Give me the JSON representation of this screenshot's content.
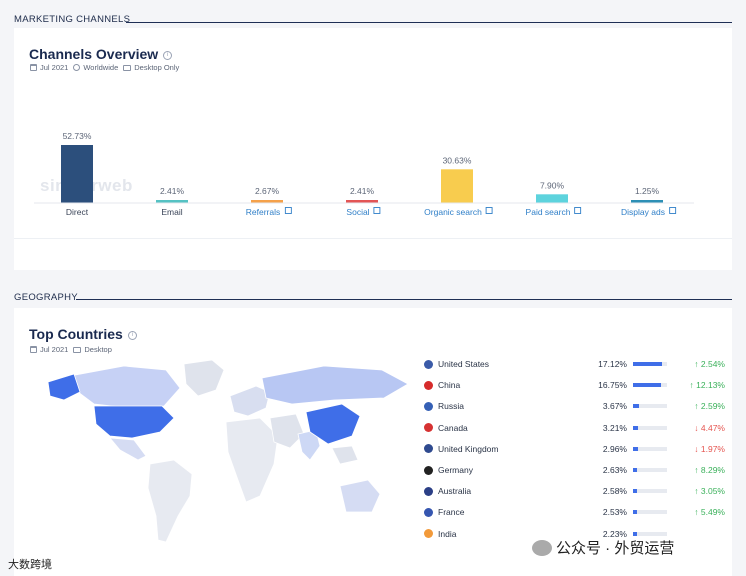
{
  "sections": {
    "marketing": "MARKETING CHANNELS",
    "geography": "GEOGRAPHY"
  },
  "channels_card": {
    "title": "Channels Overview",
    "date": "Jul 2021",
    "region": "Worldwide",
    "device": "Desktop Only",
    "watermark": "similarweb"
  },
  "chart_data": {
    "type": "bar",
    "categories": [
      "Direct",
      "Email",
      "Referrals",
      "Social",
      "Organic search",
      "Paid search",
      "Display ads"
    ],
    "values": [
      52.73,
      2.41,
      2.67,
      2.41,
      30.63,
      7.9,
      1.25
    ],
    "value_labels": [
      "52.73%",
      "2.41%",
      "2.67%",
      "2.41%",
      "30.63%",
      "7.90%",
      "1.25%"
    ],
    "colors": [
      "#2c4f7c",
      "#55c2c3",
      "#f5a14a",
      "#e35555",
      "#f8cc4e",
      "#5dd3dd",
      "#2d8fb5"
    ],
    "linked": [
      false,
      false,
      true,
      true,
      true,
      true,
      true
    ],
    "ylim": [
      0,
      60
    ],
    "title": "",
    "xlabel": "",
    "ylabel": ""
  },
  "geo_card": {
    "title": "Top Countries",
    "date": "Jul 2021",
    "device": "Desktop"
  },
  "countries": [
    {
      "name": "United States",
      "share": "17.12%",
      "share_value": 17.12,
      "change": "2.54%",
      "dir": "up",
      "flag": "#3b5ba8"
    },
    {
      "name": "China",
      "share": "16.75%",
      "share_value": 16.75,
      "change": "12.13%",
      "dir": "up",
      "flag": "#d62b2b"
    },
    {
      "name": "Russia",
      "share": "3.67%",
      "share_value": 3.67,
      "change": "2.59%",
      "dir": "up",
      "flag": "#3560b5"
    },
    {
      "name": "Canada",
      "share": "3.21%",
      "share_value": 3.21,
      "change": "4.47%",
      "dir": "down",
      "flag": "#d63232"
    },
    {
      "name": "United Kingdom",
      "share": "2.96%",
      "share_value": 2.96,
      "change": "1.97%",
      "dir": "down",
      "flag": "#2f4a8f"
    },
    {
      "name": "Germany",
      "share": "2.63%",
      "share_value": 2.63,
      "change": "8.29%",
      "dir": "up",
      "flag": "#222222"
    },
    {
      "name": "Australia",
      "share": "2.58%",
      "share_value": 2.58,
      "change": "3.05%",
      "dir": "up",
      "flag": "#2b3f86"
    },
    {
      "name": "France",
      "share": "2.53%",
      "share_value": 2.53,
      "change": "5.49%",
      "dir": "up",
      "flag": "#3656b0"
    },
    {
      "name": "India",
      "share": "2.23%",
      "share_value": 2.23,
      "change": "",
      "dir": "up",
      "flag": "#f29a3a"
    }
  ],
  "overlay": {
    "left_brand": "大数跨境",
    "right_brand": "公众号 · 外贸运营"
  }
}
